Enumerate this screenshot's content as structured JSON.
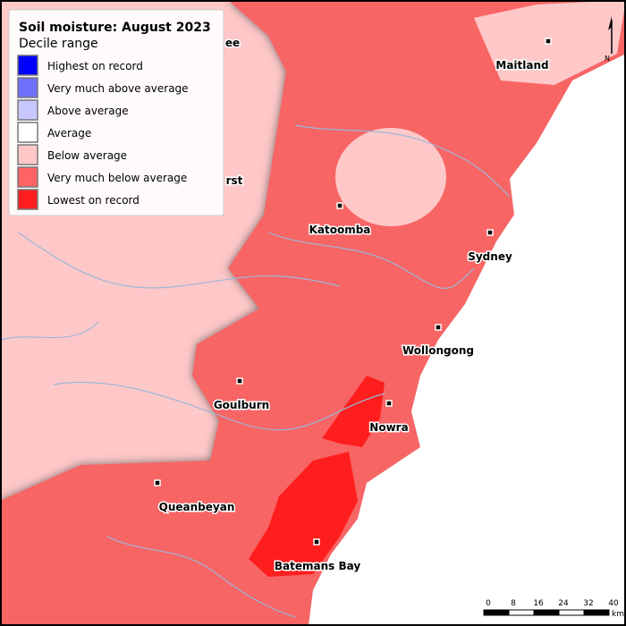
{
  "title": "Soil moisture: August 2023",
  "legend": {
    "subtitle": "Decile range",
    "items": [
      {
        "label": "Highest on record",
        "color": "#0000ff"
      },
      {
        "label": "Very much above average",
        "color": "#7070ff"
      },
      {
        "label": "Above average",
        "color": "#c8c8ff"
      },
      {
        "label": "Average",
        "color": "#ffffff"
      },
      {
        "label": "Below average",
        "color": "#ffc8c8"
      },
      {
        "label": "Very much below average",
        "color": "#ff6464"
      },
      {
        "label": "Lowest on record",
        "color": "#ff1e1e"
      }
    ]
  },
  "places": [
    "Maitland",
    "Katoomba",
    "Sydney",
    "Wollongong",
    "Goulburn",
    "Nowra",
    "Queanbeyan",
    "Batemans Bay"
  ],
  "partial_labels": [
    "ee",
    "rst"
  ],
  "scale": {
    "ticks": [
      0,
      8,
      16,
      24,
      32,
      40
    ],
    "unit": "km"
  },
  "north": "N"
}
